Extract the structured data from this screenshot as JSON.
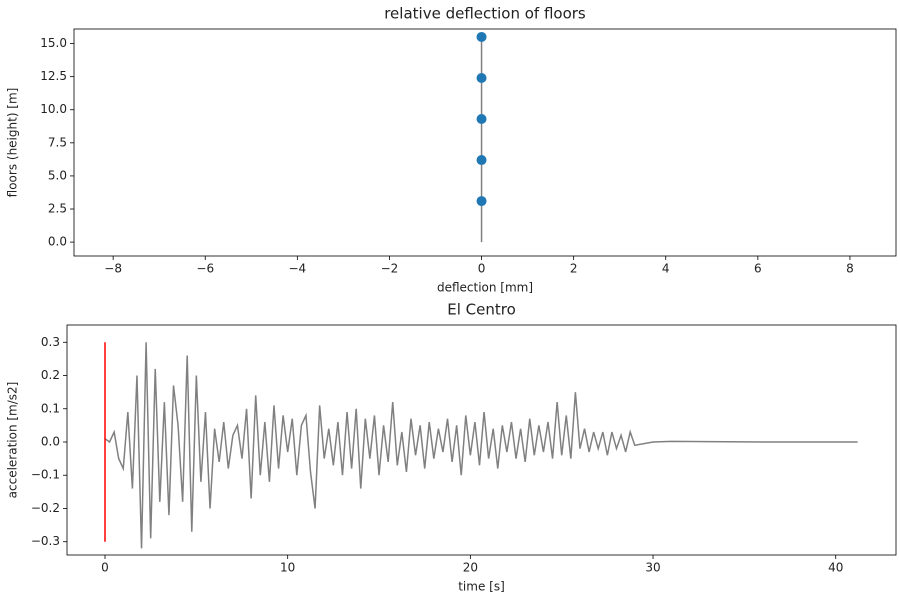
{
  "chart_data": [
    {
      "type": "line",
      "title": "relative deflection of floors",
      "xlabel": "deflection [mm]",
      "ylabel": "floors (height) [m]",
      "xlim": [
        -8.85,
        9.0
      ],
      "ylim": [
        -1.05,
        16.1
      ],
      "xticks": [
        {
          "value": -8,
          "label": "−8"
        },
        {
          "value": -6,
          "label": "−6"
        },
        {
          "value": -4,
          "label": "−4"
        },
        {
          "value": -2,
          "label": "−2"
        },
        0,
        2,
        4,
        6,
        8
      ],
      "yticks": [
        {
          "value": 0,
          "label": "0.0"
        },
        2.5,
        {
          "value": 5,
          "label": "5.0"
        },
        7.5,
        {
          "value": 10,
          "label": "10.0"
        },
        12.5,
        {
          "value": 15,
          "label": "15.0"
        }
      ],
      "series": [
        {
          "color": "#808080",
          "line": true,
          "marker": false,
          "x": [
            0,
            0,
            0,
            0,
            0,
            0
          ],
          "values": [
            0,
            3.1,
            6.2,
            9.3,
            12.4,
            15.5
          ]
        },
        {
          "color": "#1f77b4",
          "line": false,
          "marker": true,
          "x": [
            0,
            0,
            0,
            0,
            0
          ],
          "values": [
            3.1,
            6.2,
            9.3,
            12.4,
            15.5
          ]
        }
      ]
    },
    {
      "type": "line",
      "title": "El Centro",
      "xlabel": "time [s]",
      "ylabel": "acceleration [m/s2]",
      "xlim": [
        -2.08,
        43.3
      ],
      "ylim": [
        -0.34,
        0.352
      ],
      "xticks": [
        0,
        10,
        20,
        30,
        40
      ],
      "yticks": [
        {
          "value": -0.3,
          "label": "−0.3"
        },
        {
          "value": -0.2,
          "label": "−0.2"
        },
        {
          "value": -0.1,
          "label": "−0.1"
        },
        {
          "value": 0,
          "label": "0.0"
        },
        0.1,
        0.2,
        0.3
      ],
      "series": [
        {
          "color": "#808080",
          "line": true,
          "marker": false,
          "x": [
            0,
            0.25,
            0.5,
            0.75,
            1,
            1.25,
            1.5,
            1.75,
            2,
            2.25,
            2.5,
            2.75,
            3,
            3.25,
            3.5,
            3.75,
            4,
            4.25,
            4.5,
            4.75,
            5,
            5.25,
            5.5,
            5.75,
            6,
            6.25,
            6.5,
            6.75,
            7,
            7.25,
            7.5,
            7.75,
            8,
            8.25,
            8.5,
            8.75,
            9,
            9.25,
            9.5,
            9.75,
            10,
            10.25,
            10.5,
            10.75,
            11,
            11.25,
            11.5,
            11.75,
            12,
            12.25,
            12.5,
            12.75,
            13,
            13.25,
            13.5,
            13.75,
            14,
            14.25,
            14.5,
            14.75,
            15,
            15.25,
            15.5,
            15.75,
            16,
            16.25,
            16.5,
            16.75,
            17,
            17.25,
            17.5,
            17.75,
            18,
            18.25,
            18.5,
            18.75,
            19,
            19.25,
            19.5,
            19.75,
            20,
            20.25,
            20.5,
            20.75,
            21,
            21.25,
            21.5,
            21.75,
            22,
            22.25,
            22.5,
            22.75,
            23,
            23.25,
            23.5,
            23.75,
            24,
            24.25,
            24.5,
            24.75,
            25,
            25.25,
            25.5,
            25.75,
            26,
            26.25,
            26.5,
            26.75,
            27,
            27.25,
            27.5,
            27.75,
            28,
            28.25,
            28.5,
            28.75,
            29,
            30,
            31,
            33,
            36,
            39,
            41.2
          ],
          "values": [
            0.01,
            0.0,
            0.03,
            -0.05,
            -0.08,
            0.09,
            -0.14,
            0.2,
            -0.32,
            0.3,
            -0.29,
            0.22,
            -0.18,
            0.12,
            -0.22,
            0.17,
            0.05,
            -0.18,
            0.26,
            -0.27,
            0.2,
            -0.12,
            0.09,
            -0.2,
            0.04,
            -0.06,
            0.06,
            -0.08,
            0.02,
            0.05,
            -0.05,
            0.1,
            -0.17,
            0.14,
            -0.1,
            0.06,
            -0.12,
            0.11,
            -0.08,
            0.08,
            -0.03,
            0.07,
            -0.1,
            0.05,
            0.08,
            -0.09,
            -0.2,
            0.11,
            -0.05,
            0.04,
            -0.07,
            0.06,
            -0.1,
            0.09,
            -0.08,
            0.1,
            -0.14,
            0.07,
            -0.05,
            0.08,
            -0.1,
            0.05,
            -0.06,
            0.12,
            -0.07,
            0.03,
            -0.09,
            0.07,
            -0.04,
            0.05,
            -0.08,
            0.06,
            -0.05,
            0.04,
            -0.03,
            0.07,
            -0.06,
            0.05,
            -0.1,
            0.08,
            -0.04,
            0.06,
            -0.07,
            0.09,
            -0.05,
            0.04,
            -0.08,
            0.05,
            -0.03,
            0.06,
            -0.05,
            0.04,
            -0.06,
            0.07,
            -0.04,
            0.05,
            -0.03,
            0.06,
            -0.05,
            0.12,
            -0.04,
            0.08,
            -0.05,
            0.15,
            -0.02,
            0.04,
            -0.03,
            0.03,
            -0.02,
            0.03,
            -0.04,
            0.03,
            -0.02,
            0.02,
            -0.03,
            0.03,
            -0.01,
            0.0,
            0.002,
            0.001,
            0.0,
            0.0,
            0.0
          ]
        },
        {
          "color": "#ff0000",
          "line": true,
          "marker": false,
          "x": [
            0,
            0
          ],
          "values": [
            -0.3,
            0.3
          ]
        }
      ]
    }
  ]
}
